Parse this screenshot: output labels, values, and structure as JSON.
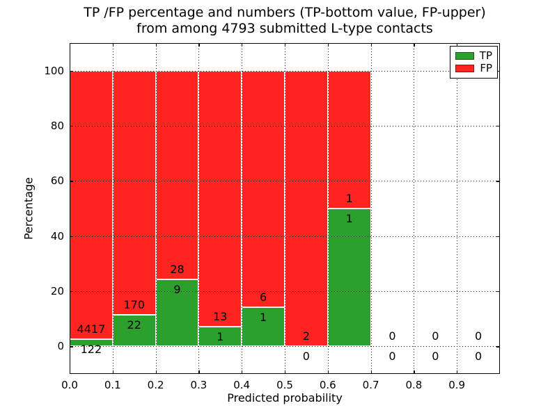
{
  "figure": {
    "title_line1": "TP /FP percentage and numbers (TP-bottom value, FP-upper)",
    "title_line2": "from among 4793 submitted L-type contacts",
    "xlabel": "Predicted probability",
    "ylabel": "Percentage"
  },
  "legend": {
    "position": "upper right",
    "items": [
      {
        "label": "TP",
        "color": "#2ca02c"
      },
      {
        "label": "FP",
        "color": "#ff2420"
      }
    ]
  },
  "chart_data": {
    "type": "bar",
    "stacked": true,
    "title": "TP /FP percentage and numbers (TP-bottom value, FP-upper) from among 4793 submitted L-type contacts",
    "xlabel": "Predicted probability",
    "ylabel": "Percentage",
    "total_contacts": 4793,
    "bin_width": 0.1,
    "bin_starts": [
      0.0,
      0.1,
      0.2,
      0.3,
      0.4,
      0.5,
      0.6,
      0.7,
      0.8,
      0.9
    ],
    "series": [
      {
        "name": "TP",
        "color": "#2ca02c",
        "counts": [
          122,
          22,
          9,
          1,
          1,
          0,
          1,
          0,
          0,
          0
        ],
        "percent": [
          2.69,
          11.46,
          24.32,
          7.14,
          14.29,
          0.0,
          50.0,
          0.0,
          0.0,
          0.0
        ]
      },
      {
        "name": "FP",
        "color": "#ff2420",
        "counts": [
          4417,
          170,
          28,
          13,
          6,
          2,
          1,
          0,
          0,
          0
        ],
        "percent": [
          97.31,
          88.54,
          75.68,
          92.86,
          85.71,
          100.0,
          50.0,
          0.0,
          0.0,
          0.0
        ]
      }
    ],
    "annotation_rule": "FP count printed above TP count at top of green segment; percentage = TP/(TP+FP)*100",
    "xtick_labels": [
      "0.0",
      "0.1",
      "0.2",
      "0.3",
      "0.4",
      "0.5",
      "0.6",
      "0.7",
      "0.8",
      "0.9"
    ],
    "ytick_values": [
      0,
      20,
      40,
      60,
      80,
      100
    ],
    "xlim": [
      0.0,
      1.0
    ],
    "ylim": [
      -10,
      110
    ],
    "grid": "dotted",
    "bar_edge_color": "#ffffff",
    "background": "#ffffff"
  }
}
